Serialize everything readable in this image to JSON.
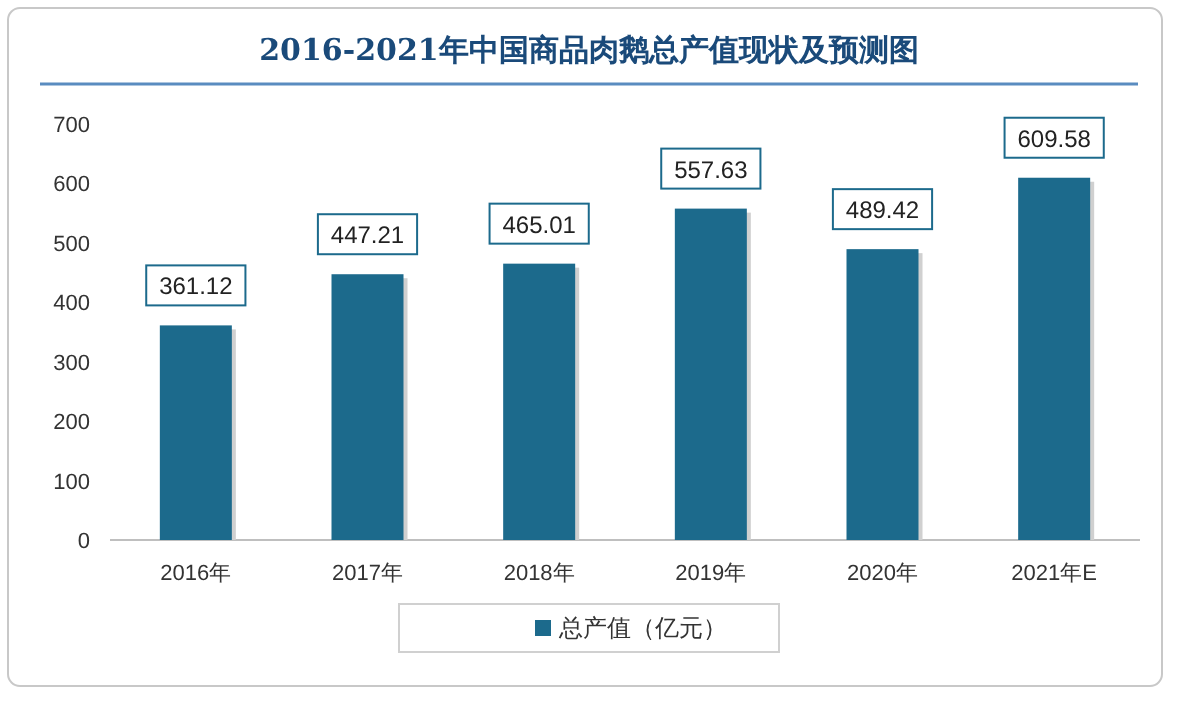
{
  "chart_data": {
    "type": "bar",
    "title": "2016-2021年中国商品肉鹅总产值现状及预测图",
    "categories": [
      "2016年",
      "2017年",
      "2018年",
      "2019年",
      "2020年",
      "2021年E"
    ],
    "series": [
      {
        "name": "总产值（亿元）",
        "color": "#1c6a8c",
        "values": [
          361.12,
          447.21,
          465.01,
          557.63,
          489.42,
          609.58
        ]
      }
    ],
    "ylim": [
      0,
      700
    ],
    "yticks": [
      0,
      100,
      200,
      300,
      400,
      500,
      600,
      700
    ],
    "data_labels": true,
    "legend": "bottom",
    "grid": false
  }
}
